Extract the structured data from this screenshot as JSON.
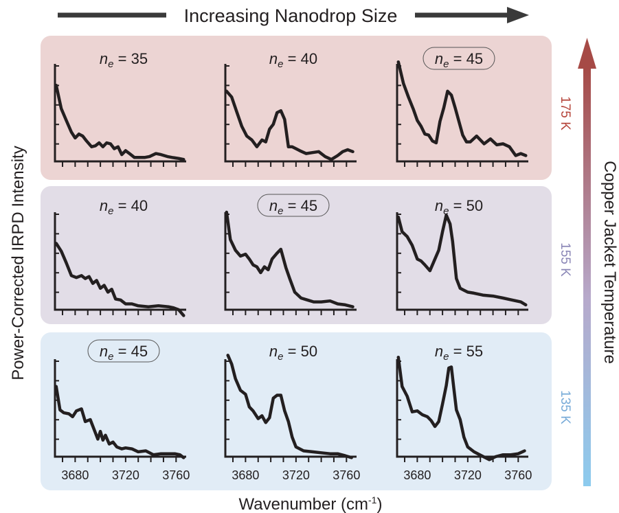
{
  "header": {
    "top_arrow_label": "Increasing Nanodrop Size"
  },
  "axes": {
    "ylabel": "Power-Corrected IRPD Intensity",
    "xlabel_main": "Wavenumber (cm",
    "xlabel_sup": "-1",
    "xlabel_close": ")",
    "right_label": "Copper Jacket Temperature",
    "xticks": [
      3680,
      3720,
      3760
    ],
    "xlim": [
      3664,
      3768
    ]
  },
  "rows": [
    {
      "temperature": "175 K",
      "color": "#b5443a",
      "bg": "#ecd4d3"
    },
    {
      "temperature": "155 K",
      "color": "#8a86b6",
      "bg": "#e2dde7"
    },
    {
      "temperature": "135 K",
      "color": "#78abd8",
      "bg": "#e1ecf6"
    }
  ],
  "colors": {
    "trace": "#231f20",
    "arrow": "#3a3a3a",
    "gradient_top": "#a64a46",
    "gradient_bottom": "#8ccbee"
  },
  "chart_data": [
    {
      "type": "line",
      "row": 0,
      "col": 0,
      "ne_prefix": "n",
      "ne_sub": "e",
      "ne_value": "= 35",
      "highlighted": false,
      "x": [
        3665,
        3669,
        3673,
        3677,
        3680,
        3683,
        3686,
        3689,
        3693,
        3696,
        3699,
        3702,
        3705,
        3708,
        3711,
        3714,
        3717,
        3720,
        3723,
        3727,
        3731,
        3735,
        3739,
        3744,
        3748,
        3753,
        3757,
        3762,
        3766
      ],
      "y": [
        0.78,
        0.54,
        0.42,
        0.3,
        0.24,
        0.28,
        0.26,
        0.21,
        0.15,
        0.16,
        0.19,
        0.15,
        0.19,
        0.18,
        0.13,
        0.15,
        0.07,
        0.11,
        0.08,
        0.04,
        0.04,
        0.04,
        0.05,
        0.08,
        0.07,
        0.05,
        0.04,
        0.03,
        0.02
      ]
    },
    {
      "type": "line",
      "row": 0,
      "col": 1,
      "ne_prefix": "n",
      "ne_sub": "e",
      "ne_value": "= 40",
      "highlighted": false,
      "x": [
        3665,
        3669,
        3673,
        3677,
        3681,
        3685,
        3689,
        3693,
        3696,
        3699,
        3702,
        3705,
        3708,
        3711,
        3714,
        3717,
        3720,
        3723,
        3728,
        3733,
        3738,
        3743,
        3748,
        3753,
        3757,
        3761,
        3765
      ],
      "y": [
        0.72,
        0.66,
        0.51,
        0.36,
        0.26,
        0.22,
        0.15,
        0.22,
        0.2,
        0.33,
        0.38,
        0.5,
        0.52,
        0.43,
        0.15,
        0.15,
        0.13,
        0.11,
        0.08,
        0.09,
        0.1,
        0.05,
        0.02,
        0.06,
        0.1,
        0.12,
        0.1
      ]
    },
    {
      "type": "line",
      "row": 0,
      "col": 2,
      "ne_prefix": "n",
      "ne_sub": "e",
      "ne_value": "= 45",
      "highlighted": true,
      "x": [
        3665,
        3669,
        3673,
        3677,
        3680,
        3683,
        3686,
        3689,
        3692,
        3695,
        3698,
        3701,
        3704,
        3707,
        3710,
        3713,
        3716,
        3719,
        3722,
        3727,
        3733,
        3738,
        3743,
        3748,
        3753,
        3758,
        3762,
        3766
      ],
      "y": [
        1.02,
        0.8,
        0.66,
        0.53,
        0.42,
        0.36,
        0.28,
        0.27,
        0.21,
        0.19,
        0.41,
        0.55,
        0.72,
        0.68,
        0.55,
        0.41,
        0.27,
        0.2,
        0.2,
        0.26,
        0.18,
        0.23,
        0.17,
        0.18,
        0.15,
        0.06,
        0.08,
        0.06
      ]
    },
    {
      "type": "line",
      "row": 1,
      "col": 0,
      "ne_prefix": "n",
      "ne_sub": "e",
      "ne_value": "= 40",
      "highlighted": false,
      "x": [
        3665,
        3669,
        3673,
        3677,
        3681,
        3685,
        3688,
        3691,
        3694,
        3697,
        3700,
        3703,
        3706,
        3709,
        3712,
        3716,
        3720,
        3725,
        3730,
        3738,
        3746,
        3754,
        3758,
        3762,
        3766
      ],
      "y": [
        0.68,
        0.6,
        0.48,
        0.35,
        0.33,
        0.35,
        0.32,
        0.34,
        0.27,
        0.3,
        0.22,
        0.25,
        0.18,
        0.21,
        0.11,
        0.1,
        0.06,
        0.06,
        0.04,
        0.03,
        0.04,
        0.03,
        0.02,
        0.0,
        -0.06
      ]
    },
    {
      "type": "line",
      "row": 1,
      "col": 1,
      "ne_prefix": "n",
      "ne_sub": "e",
      "ne_value": "= 45",
      "highlighted": true,
      "x": [
        3665,
        3668,
        3672,
        3676,
        3680,
        3683,
        3686,
        3689,
        3692,
        3695,
        3698,
        3701,
        3705,
        3708,
        3712,
        3715,
        3719,
        3724,
        3729,
        3734,
        3740,
        3747,
        3753,
        3759,
        3765
      ],
      "y": [
        1.0,
        0.72,
        0.61,
        0.55,
        0.57,
        0.52,
        0.46,
        0.44,
        0.38,
        0.44,
        0.41,
        0.52,
        0.58,
        0.62,
        0.43,
        0.32,
        0.18,
        0.12,
        0.1,
        0.08,
        0.08,
        0.09,
        0.06,
        0.05,
        0.03
      ]
    },
    {
      "type": "line",
      "row": 1,
      "col": 2,
      "ne_prefix": "n",
      "ne_sub": "e",
      "ne_value": "= 50",
      "highlighted": false,
      "x": [
        3665,
        3668,
        3672,
        3676,
        3680,
        3683,
        3686,
        3690,
        3694,
        3697,
        3700,
        3703,
        3706,
        3708,
        3711,
        3714,
        3717,
        3720,
        3725,
        3732,
        3740,
        3748,
        3755,
        3762,
        3766
      ],
      "y": [
        0.95,
        0.8,
        0.75,
        0.66,
        0.52,
        0.5,
        0.46,
        0.4,
        0.52,
        0.61,
        0.8,
        0.97,
        0.88,
        0.7,
        0.32,
        0.22,
        0.2,
        0.18,
        0.17,
        0.15,
        0.14,
        0.12,
        0.1,
        0.08,
        0.05
      ]
    },
    {
      "type": "line",
      "row": 2,
      "col": 0,
      "ne_prefix": "n",
      "ne_sub": "e",
      "ne_value": "= 45",
      "highlighted": true,
      "x": [
        3665,
        3668,
        3671,
        3675,
        3678,
        3681,
        3685,
        3688,
        3692,
        3695,
        3698,
        3700,
        3702,
        3704,
        3707,
        3710,
        3713,
        3717,
        3720,
        3725,
        3730,
        3736,
        3742,
        3748,
        3754,
        3759,
        3763,
        3766
      ],
      "y": [
        0.72,
        0.48,
        0.45,
        0.44,
        0.41,
        0.47,
        0.49,
        0.36,
        0.38,
        0.28,
        0.18,
        0.26,
        0.17,
        0.22,
        0.13,
        0.15,
        0.1,
        0.08,
        0.09,
        0.08,
        0.05,
        0.06,
        0.02,
        0.03,
        0.03,
        0.03,
        0.02,
        -0.01
      ]
    },
    {
      "type": "line",
      "row": 2,
      "col": 1,
      "ne_prefix": "n",
      "ne_sub": "e",
      "ne_value": "= 50",
      "highlighted": false,
      "x": [
        3666,
        3669,
        3672,
        3676,
        3680,
        3683,
        3686,
        3690,
        3693,
        3696,
        3699,
        3702,
        3705,
        3708,
        3711,
        3714,
        3717,
        3720,
        3726,
        3733,
        3740,
        3747,
        3753,
        3759,
        3764
      ],
      "y": [
        1.04,
        0.95,
        0.8,
        0.68,
        0.64,
        0.51,
        0.47,
        0.39,
        0.42,
        0.35,
        0.4,
        0.6,
        0.63,
        0.63,
        0.47,
        0.36,
        0.2,
        0.1,
        0.06,
        0.05,
        0.04,
        0.03,
        0.03,
        0.01,
        -0.01
      ]
    },
    {
      "type": "line",
      "row": 2,
      "col": 2,
      "ne_prefix": "n",
      "ne_sub": "e",
      "ne_value": "= 55",
      "highlighted": false,
      "x": [
        3665,
        3668,
        3672,
        3676,
        3680,
        3684,
        3688,
        3691,
        3694,
        3697,
        3700,
        3703,
        3705,
        3707,
        3709,
        3711,
        3714,
        3717,
        3720,
        3725,
        3731,
        3737,
        3742,
        3748,
        3754,
        3760,
        3765
      ],
      "y": [
        1.02,
        0.72,
        0.62,
        0.46,
        0.47,
        0.43,
        0.41,
        0.37,
        0.31,
        0.36,
        0.54,
        0.73,
        0.91,
        0.92,
        0.7,
        0.48,
        0.38,
        0.2,
        0.1,
        0.05,
        0.01,
        -0.03,
        0.0,
        0.02,
        0.02,
        0.03,
        0.06
      ]
    }
  ]
}
